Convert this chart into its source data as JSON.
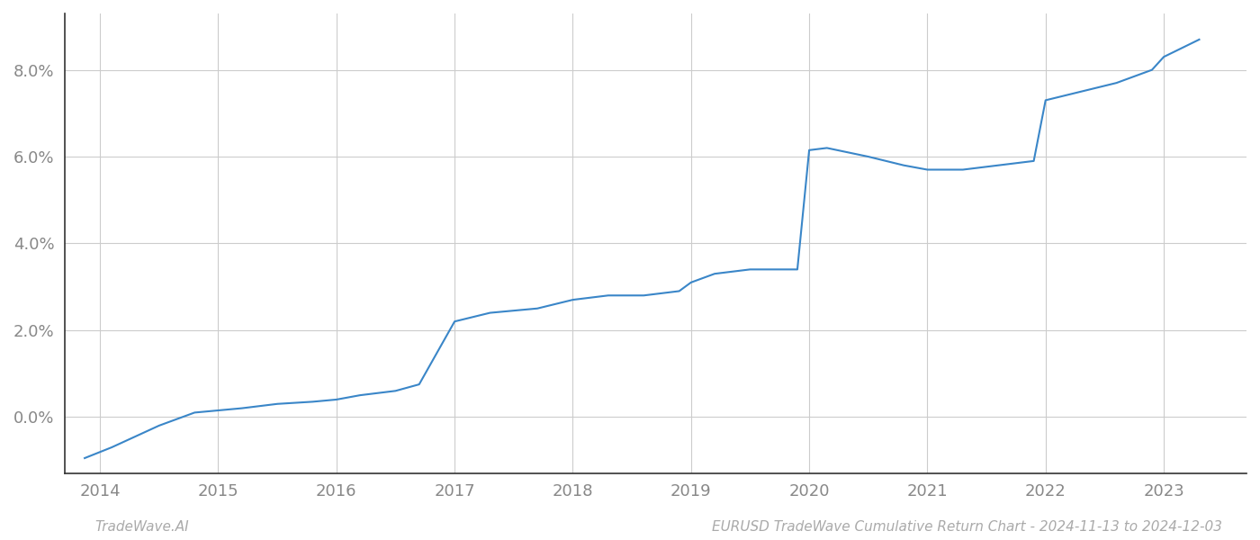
{
  "x_years": [
    2013.87,
    2014.1,
    2014.5,
    2014.8,
    2015.0,
    2015.2,
    2015.5,
    2015.8,
    2016.0,
    2016.2,
    2016.5,
    2016.7,
    2017.0,
    2017.3,
    2017.7,
    2018.0,
    2018.3,
    2018.6,
    2018.9,
    2019.0,
    2019.2,
    2019.5,
    2019.75,
    2019.9,
    2020.0,
    2020.15,
    2020.5,
    2020.8,
    2021.0,
    2021.3,
    2021.6,
    2021.9,
    2022.0,
    2022.3,
    2022.6,
    2022.9,
    2023.0,
    2023.3
  ],
  "y_values": [
    -0.0095,
    -0.007,
    -0.002,
    0.001,
    0.0015,
    0.002,
    0.003,
    0.0035,
    0.004,
    0.005,
    0.006,
    0.0075,
    0.022,
    0.024,
    0.025,
    0.027,
    0.028,
    0.028,
    0.029,
    0.031,
    0.033,
    0.034,
    0.034,
    0.034,
    0.0615,
    0.062,
    0.06,
    0.058,
    0.057,
    0.057,
    0.058,
    0.059,
    0.073,
    0.075,
    0.077,
    0.08,
    0.083,
    0.087
  ],
  "line_color": "#3a86c8",
  "line_width": 1.5,
  "background_color": "#ffffff",
  "grid_color": "#cccccc",
  "footer_left": "TradeWave.AI",
  "footer_right": "EURUSD TradeWave Cumulative Return Chart - 2024-11-13 to 2024-12-03",
  "yticks": [
    0.0,
    0.02,
    0.04,
    0.06,
    0.08
  ],
  "xticks": [
    2014,
    2015,
    2016,
    2017,
    2018,
    2019,
    2020,
    2021,
    2022,
    2023
  ],
  "xlim": [
    2013.7,
    2023.7
  ],
  "ylim": [
    -0.013,
    0.093
  ]
}
